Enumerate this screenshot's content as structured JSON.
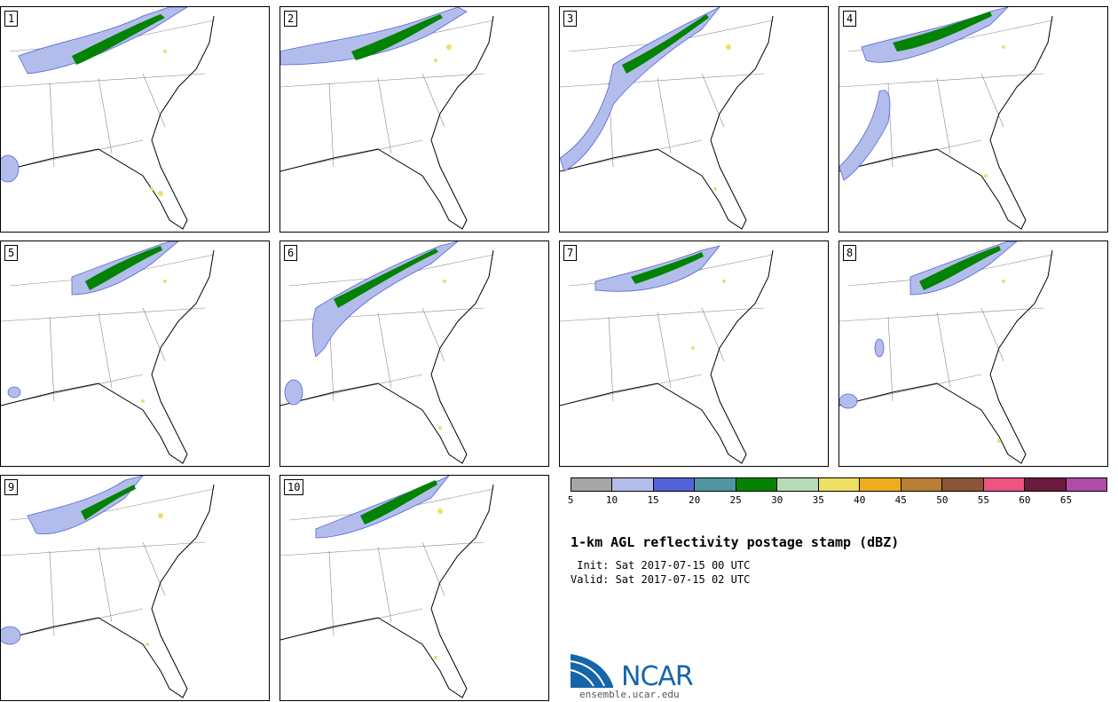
{
  "members": [
    "1",
    "2",
    "3",
    "4",
    "5",
    "6",
    "7",
    "8",
    "9",
    "10"
  ],
  "colorbar": {
    "colors": [
      "#a6a6a6",
      "#b3bdeb",
      "#5463d9",
      "#4f96a1",
      "#038203",
      "#b7dbb5",
      "#efdf62",
      "#eead1c",
      "#b97e35",
      "#8b5638",
      "#ee5480",
      "#6b1a3e",
      "#b04ca8"
    ],
    "ticks": [
      "5",
      "10",
      "15",
      "20",
      "25",
      "30",
      "35",
      "40",
      "45",
      "50",
      "55",
      "60",
      "65"
    ]
  },
  "title": "1-km AGL reflectivity postage stamp (dBZ)",
  "init_line": " Init: Sat 2017-07-15 00 UTC",
  "valid_line": "Valid: Sat 2017-07-15 02 UTC",
  "logo": {
    "text": "NCAR",
    "url": "ensemble.ucar.edu"
  }
}
